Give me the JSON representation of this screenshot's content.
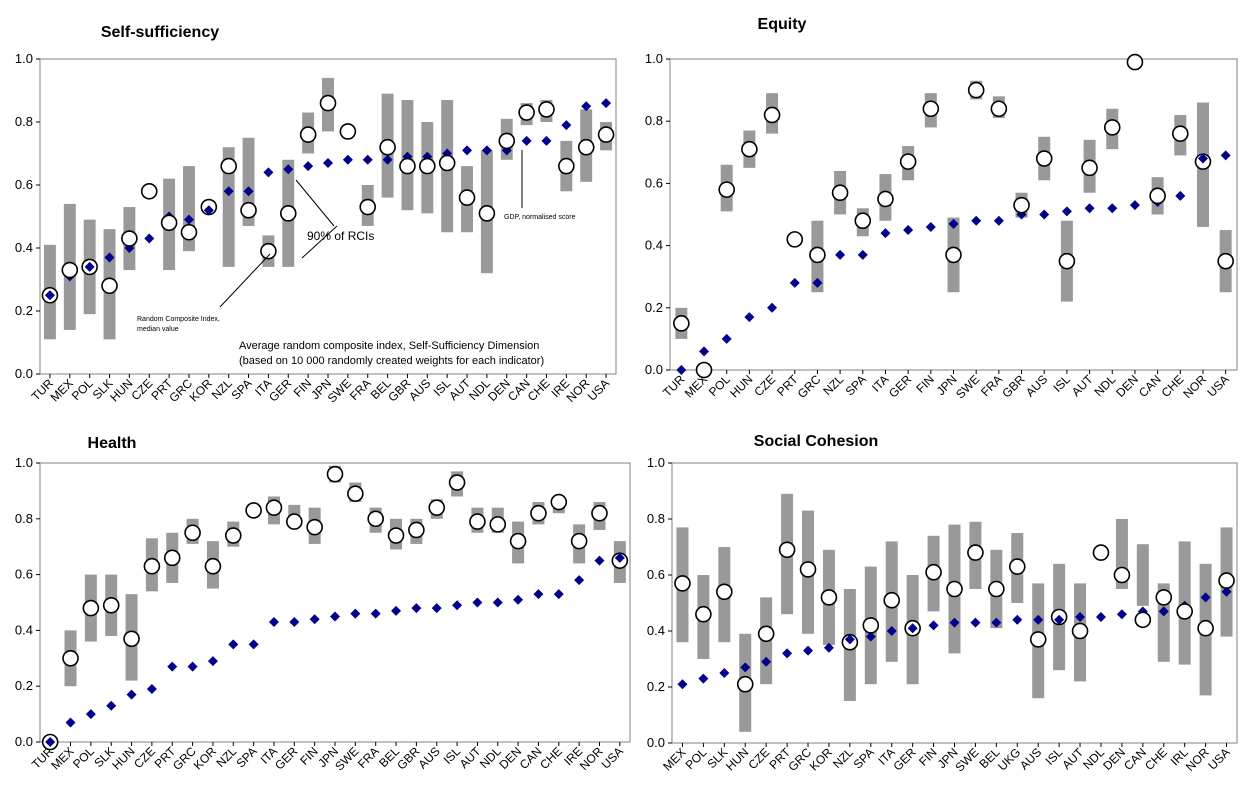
{
  "chart_data": [
    {
      "type": "scatter",
      "title": "Self-sufficiency",
      "ylim": [
        0,
        1
      ],
      "yticks": [
        "0.0",
        "0.2",
        "0.4",
        "0.6",
        "0.8",
        "1.0"
      ],
      "categories": [
        "TUR",
        "MEX",
        "POL",
        "SLK",
        "HUN",
        "CZE",
        "PRT",
        "GRC",
        "KOR",
        "NZL",
        "SPA",
        "ITA",
        "GER",
        "FIN",
        "JPN",
        "SWE",
        "FRA",
        "BEL",
        "GBR",
        "AUS",
        "ISL",
        "AUT",
        "NDL",
        "DEN",
        "CAN",
        "CHE",
        "IRE",
        "NOR",
        "USA"
      ],
      "series": [
        {
          "name": "90% of RCIs",
          "kind": "range",
          "low": [
            0.11,
            0.14,
            0.19,
            0.11,
            0.33,
            null,
            0.33,
            0.39,
            null,
            0.34,
            0.47,
            0.34,
            0.34,
            0.7,
            0.77,
            null,
            0.47,
            0.56,
            0.52,
            0.51,
            0.45,
            0.45,
            0.32,
            0.68,
            0.79,
            0.8,
            0.58,
            0.61,
            0.71
          ],
          "high": [
            0.41,
            0.54,
            0.49,
            0.46,
            0.53,
            0.67,
            0.62,
            0.66,
            null,
            0.72,
            0.75,
            0.44,
            0.68,
            0.83,
            0.94,
            null,
            0.6,
            0.89,
            0.87,
            0.8,
            0.87,
            0.66,
            0.71,
            0.81,
            0.86,
            0.87,
            0.74,
            0.84,
            0.8
          ]
        },
        {
          "name": "Random Composite Index, median value",
          "kind": "circle",
          "values": [
            0.25,
            0.33,
            0.34,
            0.28,
            0.43,
            0.58,
            0.48,
            0.45,
            0.53,
            0.66,
            0.52,
            0.39,
            0.51,
            0.76,
            0.86,
            0.77,
            0.53,
            0.72,
            0.66,
            0.66,
            0.67,
            0.56,
            0.51,
            0.74,
            0.83,
            0.84,
            0.66,
            0.72,
            0.76
          ]
        },
        {
          "name": "GDP, normalised score",
          "kind": "diamond",
          "values": [
            0.25,
            0.31,
            0.34,
            0.37,
            0.4,
            0.43,
            0.5,
            0.49,
            0.52,
            0.58,
            0.58,
            0.64,
            0.65,
            0.66,
            0.67,
            0.68,
            0.68,
            0.68,
            0.69,
            0.69,
            0.7,
            0.71,
            0.71,
            0.71,
            0.74,
            0.74,
            0.79,
            0.85,
            0.86
          ]
        }
      ],
      "annotations": {
        "rci_label": "90% of RCIs",
        "median_label_1": "Random Composite Index,",
        "median_label_2": "median value",
        "gdp_label": "GDP, normalised score",
        "caption_1": "Average random composite index, Self-Sufficiency Dimension",
        "caption_2": "(based on 10 000 randomly created weights for each indicator)"
      }
    },
    {
      "type": "scatter",
      "title": "Equity",
      "ylim": [
        0,
        1
      ],
      "yticks": [
        "0.0",
        "0.2",
        "0.4",
        "0.6",
        "0.8",
        "1.0"
      ],
      "categories": [
        "TUR",
        "MEX",
        "POL",
        "HUN",
        "CZE",
        "PRT",
        "GRC",
        "NZL",
        "SPA",
        "ITA",
        "GER",
        "FIN",
        "JPN",
        "SWE",
        "FRA",
        "GBR",
        "AUS",
        "ISL",
        "AUT",
        "NDL",
        "DEN",
        "CAN",
        "CHE",
        "NOR",
        "USA"
      ],
      "series": [
        {
          "kind": "range",
          "low": [
            0.1,
            null,
            0.51,
            0.65,
            0.76,
            null,
            0.25,
            0.5,
            0.43,
            0.48,
            0.61,
            0.78,
            0.25,
            0.87,
            0.81,
            0.49,
            0.61,
            0.22,
            0.57,
            0.71,
            null,
            0.5,
            0.69,
            0.46,
            0.25
          ],
          "high": [
            0.2,
            null,
            0.66,
            0.77,
            0.89,
            null,
            0.48,
            0.64,
            0.52,
            0.63,
            0.72,
            0.89,
            0.49,
            0.93,
            0.88,
            0.57,
            0.75,
            0.48,
            0.74,
            0.84,
            null,
            0.62,
            0.82,
            0.86,
            0.45
          ]
        },
        {
          "kind": "circle",
          "values": [
            0.15,
            0.0,
            0.58,
            0.71,
            0.82,
            0.42,
            0.37,
            0.57,
            0.48,
            0.55,
            0.67,
            0.84,
            0.37,
            0.9,
            0.84,
            0.53,
            0.68,
            0.35,
            0.65,
            0.78,
            0.99,
            0.56,
            0.76,
            0.67,
            0.35
          ]
        },
        {
          "kind": "diamond",
          "values": [
            0.0,
            0.06,
            0.1,
            0.17,
            0.2,
            0.28,
            0.28,
            0.37,
            0.37,
            0.44,
            0.45,
            0.46,
            0.47,
            0.48,
            0.48,
            0.5,
            0.5,
            0.51,
            0.52,
            0.52,
            0.53,
            0.54,
            0.56,
            0.68,
            0.69
          ]
        }
      ]
    },
    {
      "type": "scatter",
      "title": "Health",
      "ylim": [
        0,
        1
      ],
      "yticks": [
        "0.0",
        "0.2",
        "0.4",
        "0.6",
        "0.8",
        "1.0"
      ],
      "categories": [
        "TUR",
        "MEX",
        "POL",
        "SLK",
        "HUN",
        "CZE",
        "PRT",
        "GRC",
        "KOR",
        "NZL",
        "SPA",
        "ITA",
        "GER",
        "FIN",
        "JPN",
        "SWE",
        "FRA",
        "BEL",
        "GBR",
        "AUS",
        "ISL",
        "AUT",
        "NDL",
        "DEN",
        "CAN",
        "CHE",
        "IRE",
        "NOR",
        "USA"
      ],
      "series": [
        {
          "kind": "range",
          "low": [
            null,
            0.2,
            0.36,
            0.38,
            0.22,
            0.54,
            0.57,
            0.71,
            0.55,
            0.7,
            null,
            0.78,
            0.78,
            0.71,
            0.93,
            0.86,
            0.75,
            0.69,
            0.71,
            0.8,
            0.88,
            0.75,
            0.75,
            0.64,
            0.78,
            0.82,
            0.64,
            0.76,
            0.57
          ],
          "high": [
            null,
            0.4,
            0.6,
            0.6,
            0.53,
            0.73,
            0.75,
            0.8,
            0.72,
            0.79,
            null,
            0.88,
            0.85,
            0.84,
            0.99,
            0.93,
            0.84,
            0.8,
            0.8,
            0.87,
            0.97,
            0.84,
            0.84,
            0.79,
            0.86,
            0.88,
            0.78,
            0.86,
            0.72
          ]
        },
        {
          "kind": "circle",
          "values": [
            0.0,
            0.3,
            0.48,
            0.49,
            0.37,
            0.63,
            0.66,
            0.75,
            0.63,
            0.74,
            0.83,
            0.84,
            0.79,
            0.77,
            0.96,
            0.89,
            0.8,
            0.74,
            0.76,
            0.84,
            0.93,
            0.79,
            0.78,
            0.72,
            0.82,
            0.86,
            0.72,
            0.82,
            0.65
          ]
        },
        {
          "kind": "diamond",
          "values": [
            0.0,
            0.07,
            0.1,
            0.13,
            0.17,
            0.19,
            0.27,
            0.27,
            0.29,
            0.35,
            0.35,
            0.43,
            0.43,
            0.44,
            0.45,
            0.46,
            0.46,
            0.47,
            0.48,
            0.48,
            0.49,
            0.5,
            0.5,
            0.51,
            0.53,
            0.53,
            0.58,
            0.65,
            0.66
          ]
        }
      ]
    },
    {
      "type": "scatter",
      "title": "Social Cohesion",
      "ylim": [
        0,
        1
      ],
      "yticks": [
        "0.0",
        "0.2",
        "0.4",
        "0.6",
        "0.8",
        "1.0"
      ],
      "categories": [
        "MEX",
        "POL",
        "SLK",
        "HUN",
        "CZE",
        "PRT",
        "GRC",
        "KOR",
        "NZL",
        "SPA",
        "ITA",
        "GER",
        "FIN",
        "JPN",
        "SWE",
        "BEL",
        "UKG",
        "AUS",
        "ISL",
        "AUT",
        "NDL",
        "DEN",
        "CAN",
        "CHE",
        "IRL",
        "NOR",
        "USA"
      ],
      "series": [
        {
          "kind": "range",
          "low": [
            0.36,
            0.3,
            0.36,
            0.04,
            0.21,
            0.46,
            0.39,
            0.35,
            0.15,
            0.21,
            0.29,
            0.21,
            0.47,
            0.32,
            0.55,
            0.41,
            0.5,
            0.16,
            0.26,
            0.22,
            null,
            0.55,
            0.49,
            0.29,
            0.28,
            0.17,
            0.38
          ],
          "high": [
            0.77,
            0.6,
            0.7,
            0.39,
            0.52,
            0.89,
            0.83,
            0.69,
            0.55,
            0.63,
            0.72,
            0.6,
            0.74,
            0.78,
            0.79,
            0.69,
            0.75,
            0.57,
            0.64,
            0.57,
            null,
            0.8,
            0.71,
            0.57,
            0.72,
            0.64,
            0.77
          ]
        },
        {
          "kind": "circle",
          "values": [
            0.57,
            0.46,
            0.54,
            0.21,
            0.39,
            0.69,
            0.62,
            0.52,
            0.36,
            0.42,
            0.51,
            0.41,
            0.61,
            0.55,
            0.68,
            0.55,
            0.63,
            0.37,
            0.45,
            0.4,
            0.68,
            0.6,
            0.44,
            0.52,
            0.47,
            0.41,
            0.58
          ]
        },
        {
          "kind": "diamond",
          "values": [
            0.21,
            0.23,
            0.25,
            0.27,
            0.29,
            0.32,
            0.33,
            0.34,
            0.37,
            0.38,
            0.4,
            0.41,
            0.42,
            0.43,
            0.43,
            0.43,
            0.44,
            0.44,
            0.44,
            0.45,
            0.45,
            0.46,
            0.47,
            0.47,
            0.49,
            0.52,
            0.54
          ]
        }
      ]
    }
  ]
}
